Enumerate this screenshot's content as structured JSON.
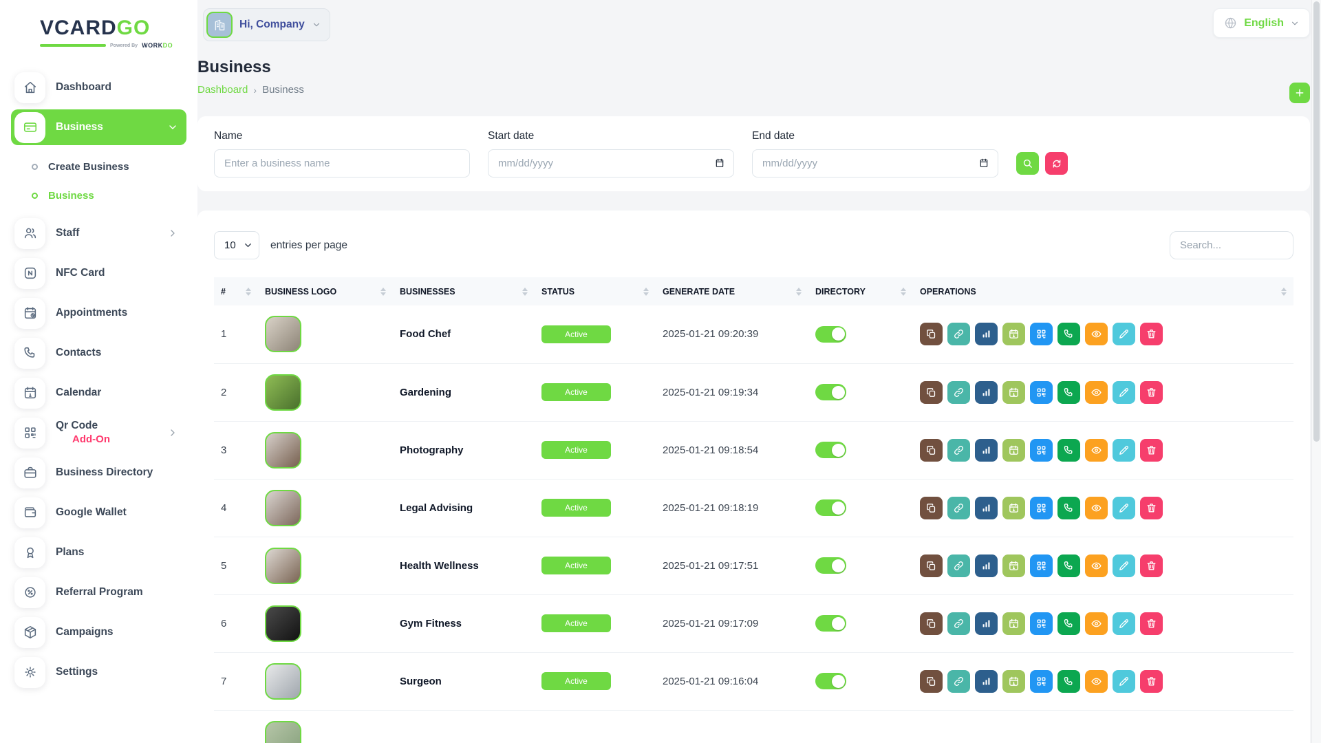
{
  "colors": {
    "primary_green": "#6fd943",
    "brand_navy": "#26334d",
    "addon_pink": "#ff3a6e",
    "reset_pink": "#f63e6c",
    "company_text_blue": "#3f4e9c"
  },
  "brand": {
    "name_primary": "VCARD",
    "name_accent": "GO",
    "powered_prefix": "Powered By",
    "powered_word": "WORK",
    "powered_word_accent": "DO"
  },
  "topbar": {
    "company": {
      "label": "Hi, Company",
      "icon": "building-icon"
    },
    "language": {
      "label": "English",
      "icon": "globe-icon"
    }
  },
  "sidebar": {
    "items": [
      {
        "id": "dashboard",
        "label": "Dashboard",
        "icon": "home"
      },
      {
        "id": "business",
        "label": "Business",
        "icon": "card",
        "active": true,
        "chevron": "down",
        "children": [
          {
            "id": "create-business",
            "label": "Create Business",
            "active": false
          },
          {
            "id": "business-list",
            "label": "Business",
            "active": true
          }
        ]
      },
      {
        "id": "staff",
        "label": "Staff",
        "icon": "users",
        "chevron": "right"
      },
      {
        "id": "nfc-card",
        "label": "NFC Card",
        "icon": "nfc"
      },
      {
        "id": "appointments",
        "label": "Appointments",
        "icon": "calendar-clock"
      },
      {
        "id": "contacts",
        "label": "Contacts",
        "icon": "phone"
      },
      {
        "id": "calendar",
        "label": "Calendar",
        "icon": "calendar"
      },
      {
        "id": "qr-code",
        "label": "Qr Code",
        "badge": "Add-On",
        "icon": "qr",
        "chevron": "right"
      },
      {
        "id": "business-directory",
        "label": "Business Directory",
        "icon": "briefcase"
      },
      {
        "id": "google-wallet",
        "label": "Google Wallet",
        "icon": "wallet"
      },
      {
        "id": "plans",
        "label": "Plans",
        "icon": "award"
      },
      {
        "id": "referral-program",
        "label": "Referral Program",
        "icon": "rosette-percent"
      },
      {
        "id": "campaigns",
        "label": "Campaigns",
        "icon": "package"
      },
      {
        "id": "settings",
        "label": "Settings",
        "icon": "gear"
      }
    ]
  },
  "page": {
    "title": "Business",
    "breadcrumb": [
      {
        "label": "Dashboard",
        "link": true
      },
      {
        "label": "Business",
        "link": false
      }
    ]
  },
  "filters": {
    "name": {
      "label": "Name",
      "placeholder": "Enter a business name",
      "value": ""
    },
    "start_date": {
      "label": "Start date",
      "placeholder": "mm/dd/yyyy",
      "value": ""
    },
    "end_date": {
      "label": "End date",
      "placeholder": "mm/dd/yyyy",
      "value": ""
    }
  },
  "table": {
    "entries_value": "10",
    "entries_label": "entries per page",
    "search_placeholder": "Search...",
    "search_value": "",
    "columns": [
      "#",
      "BUSINESS LOGO",
      "BUSINESSES",
      "STATUS",
      "GENERATE DATE",
      "DIRECTORY",
      "OPERATIONS"
    ],
    "rows": [
      {
        "index": "1",
        "name": "Food Chef",
        "status": "Active",
        "date": "2025-01-21 09:20:39",
        "directory_on": true,
        "logo_colors": [
          "#d9d2c7",
          "#8d8477"
        ]
      },
      {
        "index": "2",
        "name": "Gardening",
        "status": "Active",
        "date": "2025-01-21 09:19:34",
        "directory_on": true,
        "logo_colors": [
          "#8fbc55",
          "#49702c"
        ]
      },
      {
        "index": "3",
        "name": "Photography",
        "status": "Active",
        "date": "2025-01-21 09:18:54",
        "directory_on": true,
        "logo_colors": [
          "#d6cfca",
          "#77604f"
        ]
      },
      {
        "index": "4",
        "name": "Legal Advising",
        "status": "Active",
        "date": "2025-01-21 09:18:19",
        "directory_on": true,
        "logo_colors": [
          "#d9d4cf",
          "#7d685c"
        ]
      },
      {
        "index": "5",
        "name": "Health Wellness",
        "status": "Active",
        "date": "2025-01-21 09:17:51",
        "directory_on": true,
        "logo_colors": [
          "#ddd8d2",
          "#7a6453"
        ]
      },
      {
        "index": "6",
        "name": "Gym Fitness",
        "status": "Active",
        "date": "2025-01-21 09:17:09",
        "directory_on": true,
        "logo_colors": [
          "#4a4a4a",
          "#121212"
        ]
      },
      {
        "index": "7",
        "name": "Surgeon",
        "status": "Active",
        "date": "2025-01-21 09:16:04",
        "directory_on": true,
        "logo_colors": [
          "#e8e9ea",
          "#9fa6ad"
        ]
      }
    ],
    "partial_row": {
      "logo_colors": [
        "#b6c6a8",
        "#86a07c"
      ]
    }
  },
  "operations": [
    {
      "id": "duplicate",
      "icon": "copy",
      "color": "#71503F"
    },
    {
      "id": "link",
      "icon": "link",
      "color": "#4AB6A8"
    },
    {
      "id": "analytics",
      "icon": "chart",
      "color": "#2D5F8D"
    },
    {
      "id": "appointment",
      "icon": "calendar",
      "color": "#9FC65D"
    },
    {
      "id": "qr",
      "icon": "qr",
      "color": "#2196F3"
    },
    {
      "id": "call",
      "icon": "phone",
      "color": "#0CA750"
    },
    {
      "id": "preview",
      "icon": "eye",
      "color": "#FCA120"
    },
    {
      "id": "edit",
      "icon": "pencil",
      "color": "#4FC9DC"
    },
    {
      "id": "delete",
      "icon": "trash",
      "color": "#F63E6C"
    }
  ]
}
